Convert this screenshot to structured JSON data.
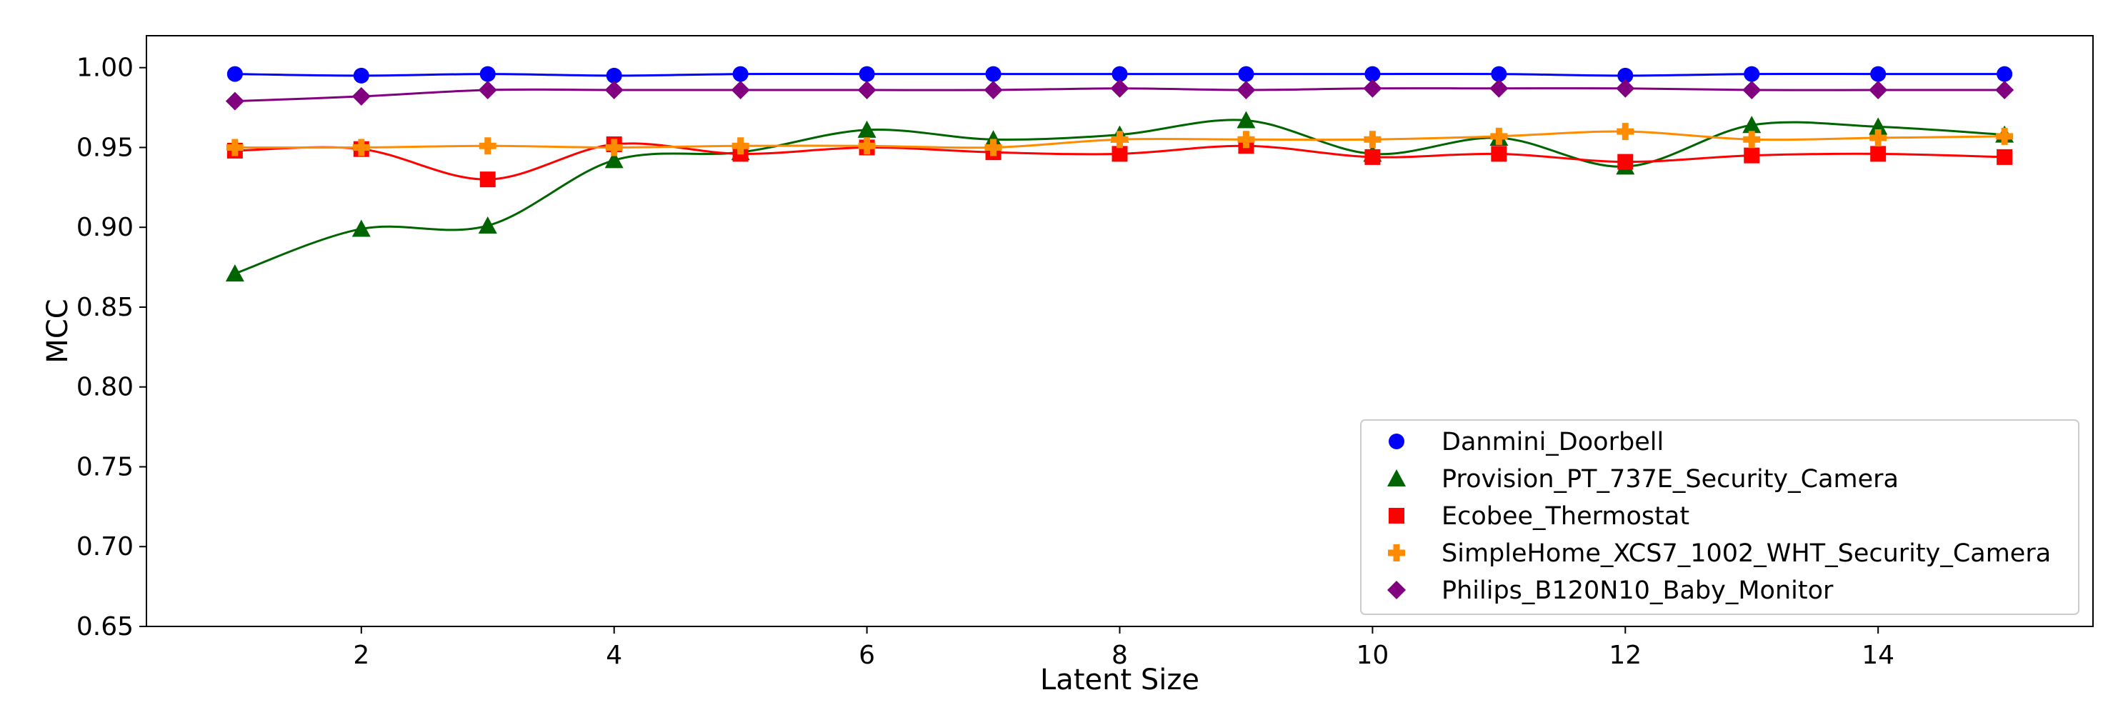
{
  "chart_data": {
    "type": "line",
    "title": "",
    "xlabel": "Latent Size",
    "ylabel": "MCC",
    "xlim": [
      0.3,
      15.7
    ],
    "ylim": [
      0.65,
      1.02
    ],
    "x_ticks": [
      2,
      4,
      6,
      8,
      10,
      12,
      14
    ],
    "x_tick_labels": [
      "2",
      "4",
      "6",
      "8",
      "10",
      "12",
      "14"
    ],
    "y_ticks": [
      0.65,
      0.7,
      0.75,
      0.8,
      0.85,
      0.9,
      0.95,
      1.0
    ],
    "y_tick_labels": [
      "0.65",
      "0.70",
      "0.75",
      "0.80",
      "0.85",
      "0.90",
      "0.95",
      "1.00"
    ],
    "grid": false,
    "legend_position": "lower-right",
    "x": [
      1,
      2,
      3,
      4,
      5,
      6,
      7,
      8,
      9,
      10,
      11,
      12,
      13,
      14,
      15
    ],
    "series": [
      {
        "name": "Danmini_Doorbell",
        "color": "#0000ff",
        "marker": "circle",
        "values": [
          0.996,
          0.995,
          0.996,
          0.995,
          0.996,
          0.996,
          0.996,
          0.996,
          0.996,
          0.996,
          0.996,
          0.995,
          0.996,
          0.996,
          0.996
        ]
      },
      {
        "name": "Provision_PT_737E_Security_Camera",
        "color": "#006400",
        "marker": "triangle",
        "values": [
          0.871,
          0.899,
          0.901,
          0.942,
          0.947,
          0.961,
          0.955,
          0.958,
          0.967,
          0.946,
          0.956,
          0.938,
          0.964,
          0.963,
          0.958
        ]
      },
      {
        "name": "Ecobee_Thermostat",
        "color": "#ff0000",
        "marker": "square",
        "values": [
          0.948,
          0.949,
          0.93,
          0.952,
          0.946,
          0.95,
          0.947,
          0.946,
          0.951,
          0.944,
          0.946,
          0.941,
          0.945,
          0.946,
          0.944
        ]
      },
      {
        "name": "SimpleHome_XCS7_1002_WHT_Security_Camera",
        "color": "#ff8c00",
        "marker": "plus",
        "values": [
          0.95,
          0.95,
          0.951,
          0.95,
          0.951,
          0.951,
          0.95,
          0.955,
          0.955,
          0.955,
          0.957,
          0.96,
          0.955,
          0.956,
          0.957
        ]
      },
      {
        "name": "Philips_B120N10_Baby_Monitor",
        "color": "#800080",
        "marker": "diamond",
        "values": [
          0.979,
          0.982,
          0.986,
          0.986,
          0.986,
          0.986,
          0.986,
          0.987,
          0.986,
          0.987,
          0.987,
          0.987,
          0.986,
          0.986,
          0.986
        ]
      }
    ]
  }
}
